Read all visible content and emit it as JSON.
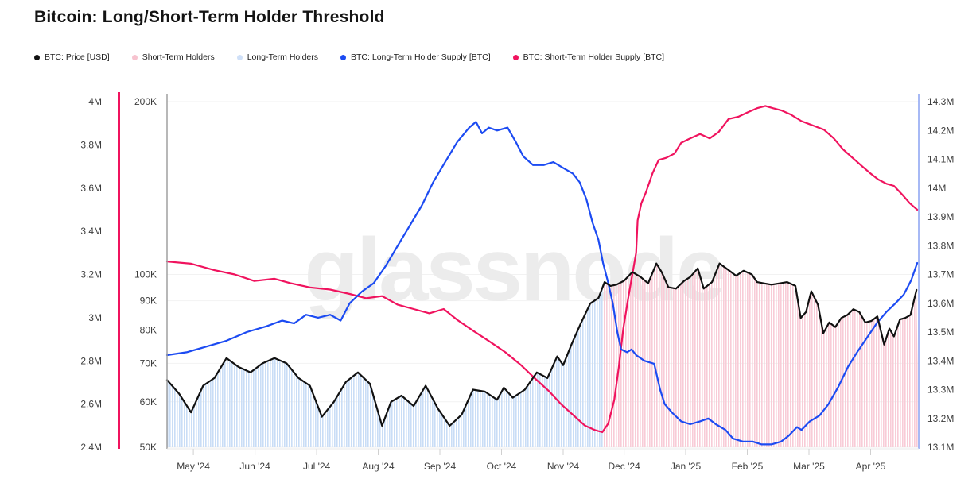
{
  "header": {
    "title": "Bitcoin: Long/Short-Term Holder Threshold"
  },
  "legend": {
    "items": [
      {
        "label": "BTC: Price [USD]",
        "color": "#111111"
      },
      {
        "label": "Short-Term Holders",
        "color": "#f7c3cf"
      },
      {
        "label": "Long-Term Holders",
        "color": "#cfe0f8"
      },
      {
        "label": "BTC: Long-Term Holder Supply [BTC]",
        "color": "#1c4bf2"
      },
      {
        "label": "BTC: Short-Term Holder Supply [BTC]",
        "color": "#f0135e"
      }
    ]
  },
  "chart_data": {
    "type": "line",
    "title": "Bitcoin: Long/Short-Term Holder Threshold",
    "watermark": {
      "text": "glassnode",
      "color": "#ececec"
    },
    "grid": "horizontal-only",
    "x_ticks": [
      {
        "label": "May '24",
        "f": 0.035
      },
      {
        "label": "Jun '24",
        "f": 0.117
      },
      {
        "label": "Jul '24",
        "f": 0.199
      },
      {
        "label": "Aug '24",
        "f": 0.281
      },
      {
        "label": "Sep '24",
        "f": 0.363
      },
      {
        "label": "Oct '24",
        "f": 0.445
      },
      {
        "label": "Nov '24",
        "f": 0.527
      },
      {
        "label": "Dec '24",
        "f": 0.608
      },
      {
        "label": "Jan '25",
        "f": 0.69
      },
      {
        "label": "Feb '25",
        "f": 0.772
      },
      {
        "label": "Mar '25",
        "f": 0.854
      },
      {
        "label": "Apr '25",
        "f": 0.936
      }
    ],
    "axes": {
      "sth": {
        "name": "Short-Term Holder Supply",
        "unit": "BTC (millions)",
        "side": "far-left",
        "scale": "linear",
        "min": 2.4,
        "max": 4.0,
        "color": "#f0135e",
        "ticks": [
          {
            "v": 4.0,
            "label": "4M"
          },
          {
            "v": 3.8,
            "label": "3.8M"
          },
          {
            "v": 3.6,
            "label": "3.6M"
          },
          {
            "v": 3.4,
            "label": "3.4M"
          },
          {
            "v": 3.2,
            "label": "3.2M"
          },
          {
            "v": 3.0,
            "label": "3M"
          },
          {
            "v": 2.8,
            "label": "2.8M"
          },
          {
            "v": 2.6,
            "label": "2.6M"
          },
          {
            "v": 2.4,
            "label": "2.4M"
          }
        ]
      },
      "price": {
        "name": "BTC Price",
        "unit": "K USD",
        "side": "inner-left",
        "scale": "log",
        "min": 50,
        "max": 200,
        "color": "#a0a0a0",
        "ticks": [
          {
            "v": 200,
            "label": "200K"
          },
          {
            "v": 100,
            "label": "100K"
          },
          {
            "v": 90,
            "label": "90K"
          },
          {
            "v": 80,
            "label": "80K"
          },
          {
            "v": 70,
            "label": "70K"
          },
          {
            "v": 60,
            "label": "60K"
          },
          {
            "v": 50,
            "label": "50K"
          }
        ]
      },
      "lth": {
        "name": "Long-Term Holder Supply",
        "unit": "BTC (millions)",
        "side": "right",
        "scale": "linear",
        "min": 13.1,
        "max": 14.3,
        "color": "#8aa2f2",
        "ticks": [
          {
            "v": 14.3,
            "label": "14.3M"
          },
          {
            "v": 14.2,
            "label": "14.2M"
          },
          {
            "v": 14.1,
            "label": "14.1M"
          },
          {
            "v": 14.0,
            "label": "14M"
          },
          {
            "v": 13.9,
            "label": "13.9M"
          },
          {
            "v": 13.8,
            "label": "13.8M"
          },
          {
            "v": 13.7,
            "label": "13.7M"
          },
          {
            "v": 13.6,
            "label": "13.6M"
          },
          {
            "v": 13.5,
            "label": "13.5M"
          },
          {
            "v": 13.4,
            "label": "13.4M"
          },
          {
            "v": 13.3,
            "label": "13.3M"
          },
          {
            "v": 13.2,
            "label": "13.2M"
          },
          {
            "v": 13.1,
            "label": "13.1M"
          }
        ]
      }
    },
    "threshold": {
      "split_f": 0.58,
      "left": {
        "name": "Long-Term Holders",
        "stripe": "#c9ddf6"
      },
      "right": {
        "name": "Short-Term Holders",
        "stripe": "#f8ccd7"
      }
    },
    "series": [
      {
        "id": "sth-supply",
        "label": "BTC: Short-Term Holder Supply [BTC]",
        "axis": "sth",
        "color": "#f0135e",
        "width": 2.2,
        "points": [
          [
            0,
            3.26
          ],
          [
            0.032,
            3.25
          ],
          [
            0.063,
            3.22
          ],
          [
            0.09,
            3.2
          ],
          [
            0.116,
            3.17
          ],
          [
            0.143,
            3.18
          ],
          [
            0.164,
            3.16
          ],
          [
            0.19,
            3.14
          ],
          [
            0.217,
            3.13
          ],
          [
            0.243,
            3.11
          ],
          [
            0.265,
            3.09
          ],
          [
            0.286,
            3.1
          ],
          [
            0.307,
            3.06
          ],
          [
            0.328,
            3.04
          ],
          [
            0.349,
            3.02
          ],
          [
            0.368,
            3.04
          ],
          [
            0.386,
            2.99
          ],
          [
            0.407,
            2.94
          ],
          [
            0.429,
            2.89
          ],
          [
            0.45,
            2.84
          ],
          [
            0.471,
            2.78
          ],
          [
            0.489,
            2.72
          ],
          [
            0.508,
            2.66
          ],
          [
            0.524,
            2.6
          ],
          [
            0.54,
            2.55
          ],
          [
            0.556,
            2.5
          ],
          [
            0.569,
            2.48
          ],
          [
            0.579,
            2.47
          ],
          [
            0.587,
            2.51
          ],
          [
            0.595,
            2.62
          ],
          [
            0.601,
            2.77
          ],
          [
            0.607,
            2.95
          ],
          [
            0.614,
            3.1
          ],
          [
            0.62,
            3.22
          ],
          [
            0.624,
            3.3
          ],
          [
            0.626,
            3.45
          ],
          [
            0.631,
            3.53
          ],
          [
            0.637,
            3.58
          ],
          [
            0.646,
            3.67
          ],
          [
            0.654,
            3.73
          ],
          [
            0.664,
            3.74
          ],
          [
            0.675,
            3.76
          ],
          [
            0.684,
            3.81
          ],
          [
            0.696,
            3.83
          ],
          [
            0.709,
            3.85
          ],
          [
            0.722,
            3.83
          ],
          [
            0.734,
            3.86
          ],
          [
            0.747,
            3.92
          ],
          [
            0.76,
            3.93
          ],
          [
            0.772,
            3.95
          ],
          [
            0.785,
            3.97
          ],
          [
            0.796,
            3.98
          ],
          [
            0.806,
            3.97
          ],
          [
            0.817,
            3.96
          ],
          [
            0.83,
            3.94
          ],
          [
            0.844,
            3.91
          ],
          [
            0.859,
            3.89
          ],
          [
            0.874,
            3.87
          ],
          [
            0.887,
            3.83
          ],
          [
            0.899,
            3.78
          ],
          [
            0.912,
            3.74
          ],
          [
            0.925,
            3.7
          ],
          [
            0.935,
            3.67
          ],
          [
            0.946,
            3.64
          ],
          [
            0.957,
            3.62
          ],
          [
            0.967,
            3.61
          ],
          [
            0.978,
            3.57
          ],
          [
            0.988,
            3.53
          ],
          [
            0.998,
            3.5
          ]
        ]
      },
      {
        "id": "lth-supply",
        "label": "BTC: Long-Term Holder Supply [BTC]",
        "axis": "lth",
        "color": "#1c4bf2",
        "width": 2.2,
        "points": [
          [
            0,
            13.42
          ],
          [
            0.026,
            13.43
          ],
          [
            0.053,
            13.45
          ],
          [
            0.079,
            13.47
          ],
          [
            0.106,
            13.5
          ],
          [
            0.132,
            13.52
          ],
          [
            0.153,
            13.54
          ],
          [
            0.169,
            13.53
          ],
          [
            0.185,
            13.56
          ],
          [
            0.201,
            13.55
          ],
          [
            0.217,
            13.56
          ],
          [
            0.231,
            13.54
          ],
          [
            0.243,
            13.6
          ],
          [
            0.259,
            13.64
          ],
          [
            0.275,
            13.67
          ],
          [
            0.291,
            13.73
          ],
          [
            0.307,
            13.8
          ],
          [
            0.323,
            13.87
          ],
          [
            0.339,
            13.94
          ],
          [
            0.354,
            14.02
          ],
          [
            0.37,
            14.09
          ],
          [
            0.386,
            14.16
          ],
          [
            0.402,
            14.21
          ],
          [
            0.411,
            14.23
          ],
          [
            0.419,
            14.19
          ],
          [
            0.428,
            14.21
          ],
          [
            0.439,
            14.2
          ],
          [
            0.453,
            14.21
          ],
          [
            0.464,
            14.16
          ],
          [
            0.474,
            14.11
          ],
          [
            0.487,
            14.08
          ],
          [
            0.501,
            14.08
          ],
          [
            0.514,
            14.09
          ],
          [
            0.527,
            14.07
          ],
          [
            0.54,
            14.05
          ],
          [
            0.549,
            14.02
          ],
          [
            0.558,
            13.96
          ],
          [
            0.566,
            13.88
          ],
          [
            0.574,
            13.82
          ],
          [
            0.58,
            13.74
          ],
          [
            0.586,
            13.68
          ],
          [
            0.593,
            13.6
          ],
          [
            0.599,
            13.5
          ],
          [
            0.604,
            13.44
          ],
          [
            0.612,
            13.43
          ],
          [
            0.618,
            13.44
          ],
          [
            0.624,
            13.42
          ],
          [
            0.635,
            13.4
          ],
          [
            0.648,
            13.39
          ],
          [
            0.656,
            13.3
          ],
          [
            0.662,
            13.25
          ],
          [
            0.672,
            13.22
          ],
          [
            0.684,
            13.19
          ],
          [
            0.696,
            13.18
          ],
          [
            0.709,
            13.19
          ],
          [
            0.72,
            13.2
          ],
          [
            0.73,
            13.18
          ],
          [
            0.743,
            13.16
          ],
          [
            0.753,
            13.13
          ],
          [
            0.766,
            13.12
          ],
          [
            0.779,
            13.12
          ],
          [
            0.791,
            13.11
          ],
          [
            0.804,
            13.11
          ],
          [
            0.817,
            13.12
          ],
          [
            0.827,
            13.14
          ],
          [
            0.838,
            13.17
          ],
          [
            0.844,
            13.16
          ],
          [
            0.855,
            13.19
          ],
          [
            0.868,
            13.21
          ],
          [
            0.88,
            13.25
          ],
          [
            0.893,
            13.31
          ],
          [
            0.906,
            13.38
          ],
          [
            0.918,
            13.43
          ],
          [
            0.931,
            13.48
          ],
          [
            0.944,
            13.53
          ],
          [
            0.957,
            13.57
          ],
          [
            0.969,
            13.6
          ],
          [
            0.98,
            13.63
          ],
          [
            0.99,
            13.68
          ],
          [
            0.998,
            13.74
          ]
        ]
      },
      {
        "id": "price",
        "label": "BTC: Price [USD]",
        "axis": "price",
        "color": "#111111",
        "width": 2.2,
        "points": [
          [
            0,
            65.5
          ],
          [
            0.016,
            62
          ],
          [
            0.032,
            57.5
          ],
          [
            0.048,
            64
          ],
          [
            0.063,
            66
          ],
          [
            0.079,
            71.5
          ],
          [
            0.095,
            69
          ],
          [
            0.111,
            67.5
          ],
          [
            0.127,
            70
          ],
          [
            0.143,
            71.5
          ],
          [
            0.159,
            70
          ],
          [
            0.175,
            66
          ],
          [
            0.19,
            64
          ],
          [
            0.206,
            56.5
          ],
          [
            0.222,
            60
          ],
          [
            0.238,
            65
          ],
          [
            0.254,
            67.5
          ],
          [
            0.27,
            64.5
          ],
          [
            0.286,
            54.5
          ],
          [
            0.298,
            60
          ],
          [
            0.312,
            61.5
          ],
          [
            0.328,
            59
          ],
          [
            0.344,
            64
          ],
          [
            0.36,
            58.5
          ],
          [
            0.376,
            54.5
          ],
          [
            0.392,
            57
          ],
          [
            0.407,
            63
          ],
          [
            0.423,
            62.5
          ],
          [
            0.439,
            60.5
          ],
          [
            0.448,
            63.5
          ],
          [
            0.46,
            61
          ],
          [
            0.476,
            63
          ],
          [
            0.492,
            67.5
          ],
          [
            0.506,
            66
          ],
          [
            0.519,
            72
          ],
          [
            0.527,
            69.5
          ],
          [
            0.538,
            75.5
          ],
          [
            0.55,
            82
          ],
          [
            0.563,
            89
          ],
          [
            0.574,
            91
          ],
          [
            0.582,
            97
          ],
          [
            0.59,
            95.5
          ],
          [
            0.598,
            96
          ],
          [
            0.608,
            97.5
          ],
          [
            0.619,
            101
          ],
          [
            0.63,
            99
          ],
          [
            0.64,
            96.5
          ],
          [
            0.651,
            104.5
          ],
          [
            0.658,
            101
          ],
          [
            0.667,
            95
          ],
          [
            0.677,
            94.5
          ],
          [
            0.688,
            97.5
          ],
          [
            0.696,
            99
          ],
          [
            0.706,
            102.5
          ],
          [
            0.714,
            94.5
          ],
          [
            0.725,
            97
          ],
          [
            0.735,
            104.5
          ],
          [
            0.746,
            102
          ],
          [
            0.757,
            99.5
          ],
          [
            0.767,
            101.5
          ],
          [
            0.778,
            100
          ],
          [
            0.785,
            97
          ],
          [
            0.794,
            96.5
          ],
          [
            0.804,
            96
          ],
          [
            0.815,
            96.5
          ],
          [
            0.825,
            97
          ],
          [
            0.836,
            95.5
          ],
          [
            0.843,
            84
          ],
          [
            0.85,
            86
          ],
          [
            0.857,
            93.5
          ],
          [
            0.866,
            88.5
          ],
          [
            0.873,
            79
          ],
          [
            0.881,
            82.5
          ],
          [
            0.889,
            81
          ],
          [
            0.897,
            84
          ],
          [
            0.905,
            85
          ],
          [
            0.913,
            87
          ],
          [
            0.921,
            86
          ],
          [
            0.929,
            82.5
          ],
          [
            0.937,
            83
          ],
          [
            0.945,
            84.5
          ],
          [
            0.954,
            75.5
          ],
          [
            0.961,
            80.5
          ],
          [
            0.967,
            78
          ],
          [
            0.975,
            83.5
          ],
          [
            0.982,
            84
          ],
          [
            0.989,
            85
          ],
          [
            0.997,
            94
          ]
        ]
      }
    ]
  }
}
